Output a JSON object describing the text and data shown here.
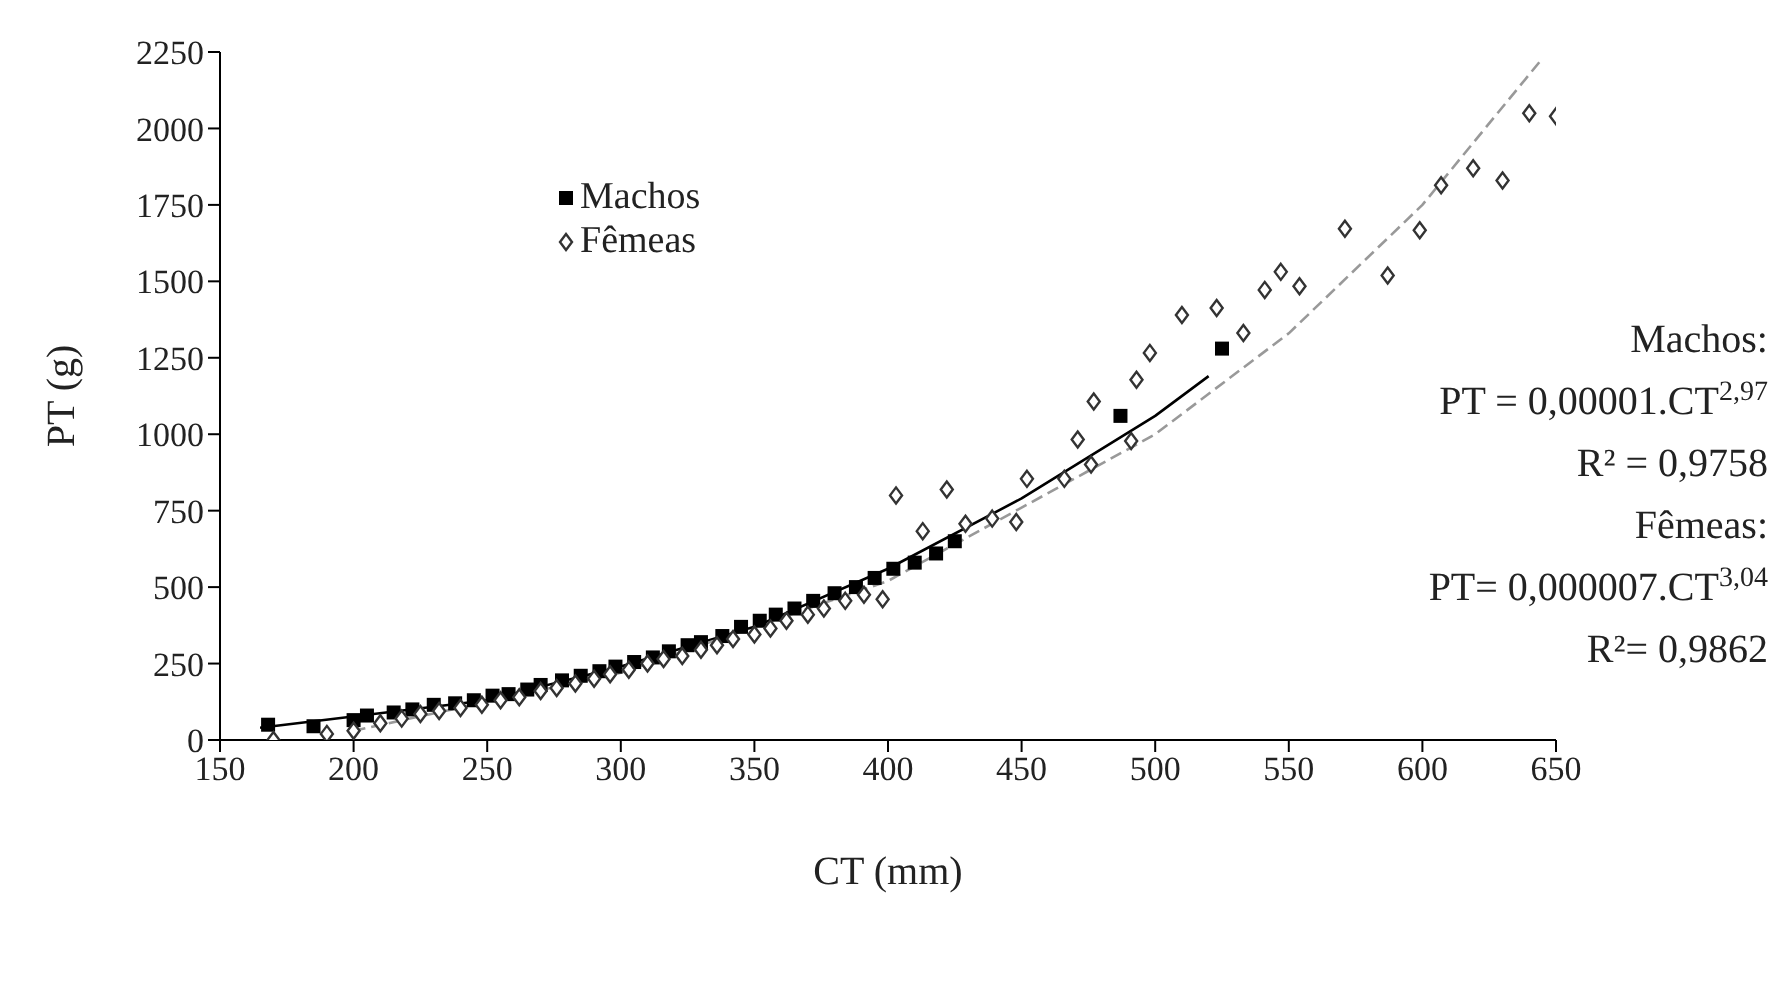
{
  "chart_data": {
    "type": "scatter",
    "xlabel": "CT (mm)",
    "ylabel": "PT (g)",
    "xlim": [
      150,
      650
    ],
    "xticks": [
      150,
      200,
      250,
      300,
      350,
      400,
      450,
      500,
      550,
      600,
      650
    ],
    "ylim": [
      0,
      2250
    ],
    "yticks": [
      0,
      250,
      500,
      750,
      1000,
      1250,
      1500,
      1750,
      2000,
      2250
    ],
    "grid": false,
    "legend": "top left",
    "annotations": [
      "Machos:",
      "PT = 0,00001.CT$^{2,97}$",
      "R² = 0,9758",
      "Fêmeas:",
      "PT= 0,000007.CT$^{3,04}$",
      "R²= 0,9862"
    ],
    "series": [
      {
        "name": "Machos",
        "marker": "square",
        "color": "#000000",
        "x": [
          168,
          185,
          200,
          205,
          215,
          222,
          230,
          238,
          245,
          252,
          258,
          265,
          270,
          278,
          285,
          292,
          298,
          305,
          312,
          318,
          325,
          330,
          338,
          345,
          352,
          358,
          365,
          372,
          380,
          388,
          395,
          402,
          410,
          418,
          425,
          487,
          525
        ],
        "values": [
          50,
          45,
          65,
          80,
          90,
          100,
          115,
          120,
          130,
          145,
          150,
          165,
          180,
          195,
          210,
          225,
          240,
          255,
          270,
          290,
          310,
          320,
          340,
          370,
          390,
          410,
          430,
          455,
          480,
          500,
          530,
          560,
          580,
          610,
          650,
          1060,
          1280
        ]
      },
      {
        "name": "Fêmeas",
        "marker": "diamond",
        "color": "#333333",
        "x": [
          170,
          190,
          200,
          210,
          218,
          225,
          232,
          240,
          248,
          255,
          262,
          270,
          276,
          283,
          290,
          296,
          303,
          310,
          316,
          323,
          330,
          336,
          342,
          350,
          356,
          362,
          370,
          376,
          384,
          391,
          398,
          403,
          413,
          422,
          429,
          439,
          448,
          452,
          466,
          471,
          476,
          477,
          491,
          493,
          498,
          510,
          523,
          533,
          541,
          547,
          554,
          571,
          587,
          599,
          607,
          619,
          630,
          640,
          650
        ],
        "values": [
          0,
          20,
          30,
          55,
          70,
          85,
          95,
          105,
          115,
          130,
          140,
          160,
          170,
          185,
          200,
          215,
          230,
          250,
          265,
          275,
          295,
          310,
          330,
          345,
          365,
          390,
          410,
          430,
          455,
          475,
          460,
          800,
          683,
          819,
          707,
          724,
          713,
          854,
          854,
          983,
          901,
          1107,
          978,
          1178,
          1266,
          1390,
          1413,
          1331,
          1472,
          1531,
          1484,
          1672,
          1519,
          1667,
          1814,
          1870,
          1830,
          2050,
          2040
        ]
      },
      {
        "type": "line",
        "color": "#000000",
        "line_style": "solid",
        "x": [
          165,
          250,
          300,
          350,
          400,
          450,
          500,
          520
        ],
        "values": [
          40,
          130,
          240,
          370,
          560,
          790,
          1060,
          1190
        ]
      },
      {
        "type": "line",
        "color": "#999999",
        "line_style": "dashed",
        "x": [
          200,
          300,
          400,
          500,
          550,
          600,
          645
        ],
        "values": [
          30,
          220,
          520,
          1000,
          1330,
          1750,
          2230
        ]
      }
    ]
  }
}
